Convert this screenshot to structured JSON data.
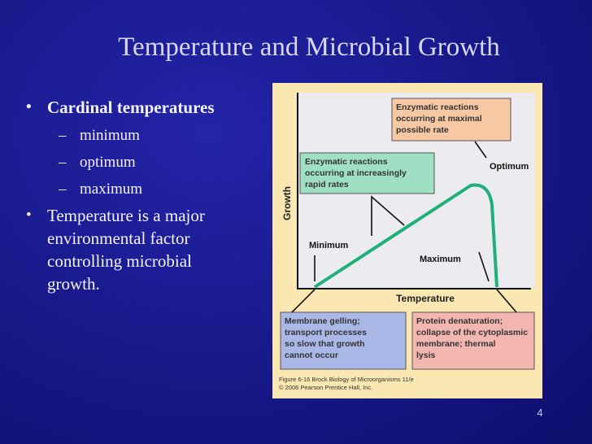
{
  "slide": {
    "title": "Temperature and Microbial Growth",
    "bullets": {
      "main_1": "Cardinal temperatures",
      "sub_items": [
        "minimum",
        "optimum",
        "maximum"
      ],
      "main_2_lines": [
        "Temperature is a major",
        "environmental factor",
        "controlling microbial",
        "growth."
      ]
    },
    "page_number": "4"
  },
  "figure": {
    "y_axis_label": "Growth",
    "x_axis_label": "Temperature",
    "point_labels": {
      "minimum": "Minimum",
      "optimum": "Optimum",
      "maximum": "Maximum"
    },
    "callouts": {
      "maximal_rate": [
        "Enzymatic reactions",
        "occurring at maximal",
        "possible rate"
      ],
      "increasing_rate": [
        "Enzymatic reactions",
        "occurring at increasingly",
        "rapid rates"
      ],
      "membrane_gelling": [
        "Membrane gelling;",
        "transport processes",
        "so slow that growth",
        "cannot occur"
      ],
      "denaturation": [
        "Protein denaturation;",
        "collapse of the cytoplasmic",
        "membrane; thermal",
        "lysis"
      ]
    },
    "caption_lines": [
      "Figure 6-16  Brock Biology of Microorganisms 11/e",
      "© 2006 Pearson Prentice Hall, Inc."
    ]
  },
  "colors": {
    "background": "#14147e",
    "title": "#d8d8ff",
    "curve": "#1fb07a",
    "callout_green": "#9fe0c4",
    "callout_peach": "#f6c8a4",
    "callout_blue": "#a9b8e6",
    "callout_pink": "#f4b6b0"
  }
}
